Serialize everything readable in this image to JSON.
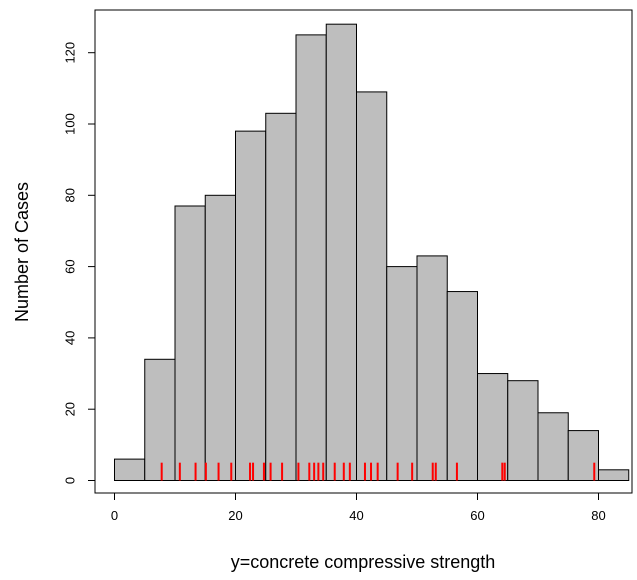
{
  "chart_data": {
    "type": "bar",
    "subtype": "histogram",
    "title": "",
    "xlabel": "y=concrete compressive strength",
    "ylabel": "Number of Cases",
    "bin_edges": [
      0,
      5,
      10,
      15,
      20,
      25,
      30,
      35,
      40,
      45,
      50,
      55,
      60,
      65,
      70,
      75,
      80,
      85
    ],
    "values": [
      6,
      34,
      77,
      80,
      98,
      103,
      125,
      128,
      109,
      60,
      63,
      53,
      30,
      28,
      19,
      14,
      3
    ],
    "xlim": [
      0,
      85
    ],
    "ylim": [
      0,
      128
    ],
    "x_ticks": [
      "0",
      "20",
      "40",
      "60",
      "80"
    ],
    "y_ticks": [
      "0",
      "20",
      "40",
      "60",
      "80",
      "100",
      "120"
    ],
    "rug_values": [
      7.8,
      10.8,
      13.4,
      15.1,
      17.2,
      19.3,
      22.4,
      22.9,
      24.7,
      25.8,
      27.7,
      30.4,
      32.2,
      33.0,
      33.7,
      34.5,
      36.4,
      37.9,
      38.9,
      41.4,
      42.4,
      43.5,
      46.8,
      49.2,
      52.6,
      53.1,
      56.6,
      64.1,
      64.5,
      79.3
    ],
    "rug_height": 5,
    "grid": false,
    "legend": "none",
    "colors": {
      "bar_fill": "#bebebe",
      "bar_stroke": "#000000",
      "rug": "#ff0000",
      "axis": "#000000"
    }
  }
}
